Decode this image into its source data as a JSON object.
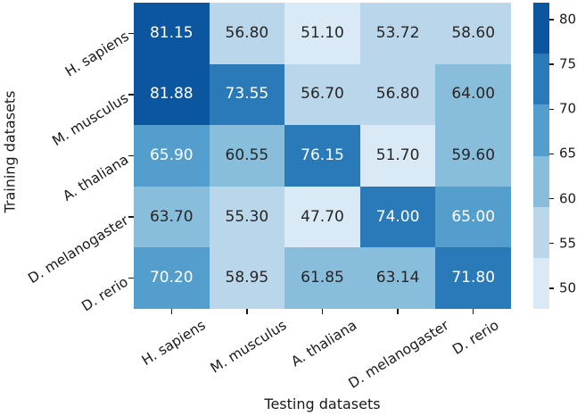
{
  "chart_data": {
    "type": "heatmap",
    "title": "",
    "xlabel": "Testing datasets",
    "ylabel": "Training datasets",
    "x_categories": [
      "H. sapiens",
      "M. musculus",
      "A. thaliana",
      "D. melanogaster",
      "D. rerio"
    ],
    "y_categories": [
      "H. sapiens",
      "M. musculus",
      "A. thaliana",
      "D. melanogaster",
      "D. rerio"
    ],
    "values": [
      [
        81.15,
        56.8,
        51.1,
        53.72,
        58.6
      ],
      [
        81.88,
        73.55,
        56.7,
        56.8,
        64.0
      ],
      [
        65.9,
        60.55,
        76.15,
        51.7,
        59.6
      ],
      [
        63.7,
        55.3,
        47.7,
        74.0,
        65.0
      ],
      [
        70.2,
        58.95,
        61.85,
        63.14,
        71.8
      ]
    ],
    "value_decimals": 2,
    "vmin": 47.7,
    "vmax": 81.88,
    "palette": [
      "#dae9f6",
      "#bad6eb",
      "#88bedc",
      "#549ecd",
      "#2a7aba",
      "#0c56a0"
    ],
    "colorbar_ticks": [
      80,
      75,
      70,
      65,
      60,
      55,
      50
    ],
    "annotation_colors": {
      "on_dark": "#ffffff",
      "on_light": "#262626"
    },
    "legend_position": "right",
    "grid": false
  }
}
